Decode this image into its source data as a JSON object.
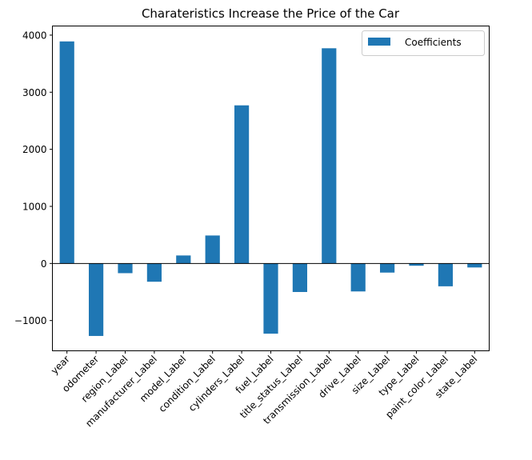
{
  "chart_data": {
    "type": "bar",
    "title": "Charateristics Increase the Price of the Car",
    "xlabel": "",
    "ylabel": "",
    "categories": [
      "year",
      "odometer",
      "region_Label",
      "manufacturer_Label",
      "model_Label",
      "condition_Label",
      "cylinders_Label",
      "fuel_Label",
      "title_status_Label",
      "transmission_Label",
      "drive_Label",
      "size_Label",
      "type_Label",
      "paint_color_Label",
      "state_Label"
    ],
    "series": [
      {
        "name": "Coefficients",
        "color": "#1f77b4",
        "values": [
          3890,
          -1270,
          -170,
          -320,
          140,
          490,
          2770,
          -1230,
          -500,
          3770,
          -490,
          -160,
          -40,
          -400,
          -70
        ]
      }
    ],
    "ylim": [
      -1530,
      4160
    ],
    "yticks": [
      -1000,
      0,
      1000,
      2000,
      3000,
      4000
    ],
    "ytick_labels": [
      "−1000",
      "0",
      "1000",
      "2000",
      "3000",
      "4000"
    ],
    "grid": false,
    "legend_position": "top-right"
  }
}
